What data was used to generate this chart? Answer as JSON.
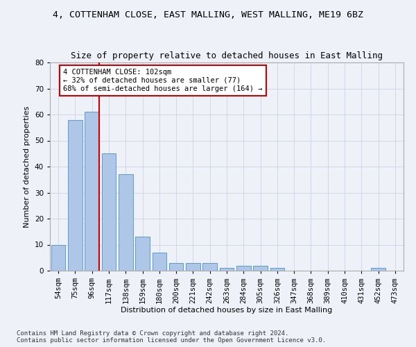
{
  "title": "4, COTTENHAM CLOSE, EAST MALLING, WEST MALLING, ME19 6BZ",
  "subtitle": "Size of property relative to detached houses in East Malling",
  "xlabel": "Distribution of detached houses by size in East Malling",
  "ylabel": "Number of detached properties",
  "categories": [
    "54sqm",
    "75sqm",
    "96sqm",
    "117sqm",
    "138sqm",
    "159sqm",
    "180sqm",
    "200sqm",
    "221sqm",
    "242sqm",
    "263sqm",
    "284sqm",
    "305sqm",
    "326sqm",
    "347sqm",
    "368sqm",
    "389sqm",
    "410sqm",
    "431sqm",
    "452sqm",
    "473sqm"
  ],
  "values": [
    10,
    58,
    61,
    45,
    37,
    13,
    7,
    3,
    3,
    3,
    1,
    2,
    2,
    1,
    0,
    0,
    0,
    0,
    0,
    1,
    0
  ],
  "bar_color": "#aec6e8",
  "bar_edge_color": "#5b9bd5",
  "vline_color": "#cc0000",
  "annotation_text_line1": "4 COTTENHAM CLOSE: 102sqm",
  "annotation_text_line2": "← 32% of detached houses are smaller (77)",
  "annotation_text_line3": "68% of semi-detached houses are larger (164) →",
  "annotation_box_color": "#cc0000",
  "ylim": [
    0,
    80
  ],
  "yticks": [
    0,
    10,
    20,
    30,
    40,
    50,
    60,
    70,
    80
  ],
  "grid_color": "#d0d8e8",
  "background_color": "#eef2f8",
  "plot_bg_color": "#eef2f8",
  "footer_line1": "Contains HM Land Registry data © Crown copyright and database right 2024.",
  "footer_line2": "Contains public sector information licensed under the Open Government Licence v3.0.",
  "title_fontsize": 9.5,
  "subtitle_fontsize": 9,
  "axis_label_fontsize": 8,
  "tick_fontsize": 7.5,
  "annotation_fontsize": 7.5,
  "footer_fontsize": 6.5
}
